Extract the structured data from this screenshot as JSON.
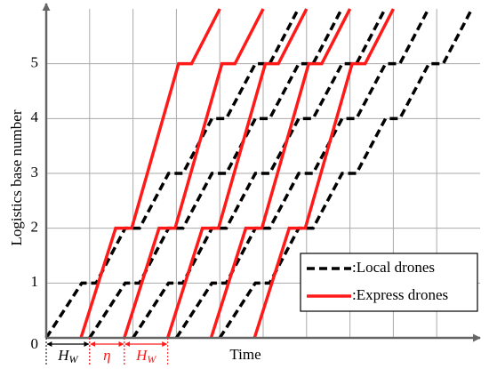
{
  "chart_data": {
    "type": "line",
    "x_label": "Time",
    "y_label": "Logistics base number",
    "xlim": [
      0,
      10
    ],
    "ylim": [
      0,
      6
    ],
    "xticks": [
      1,
      2,
      3,
      4,
      5,
      6,
      7,
      8,
      9
    ],
    "yticks": [
      0,
      1,
      2,
      3,
      4,
      5
    ],
    "grid": true,
    "legend": "lower right",
    "series": [
      {
        "name": ":Local drones",
        "color": "#000000",
        "dashed": true,
        "lines": [
          {
            "x": [
              0,
              0.82,
              1.15,
              1.82,
              2.15,
              2.82,
              3.15,
              3.82,
              4.15,
              4.82,
              5.15,
              5.81
            ],
            "values": [
              0,
              1,
              1,
              2,
              2,
              3,
              3,
              4,
              4,
              5,
              5,
              6
            ]
          },
          {
            "x": [
              1,
              1.82,
              2.15,
              2.82,
              3.15,
              3.82,
              4.15,
              4.82,
              5.15,
              5.82,
              6.15,
              6.81
            ],
            "values": [
              0,
              1,
              1,
              2,
              2,
              3,
              3,
              4,
              4,
              5,
              5,
              6
            ]
          },
          {
            "x": [
              2,
              2.82,
              3.15,
              3.82,
              4.15,
              4.82,
              5.15,
              5.82,
              6.15,
              6.82,
              7.15,
              7.81
            ],
            "values": [
              0,
              1,
              1,
              2,
              2,
              3,
              3,
              4,
              4,
              5,
              5,
              6
            ]
          },
          {
            "x": [
              3,
              3.82,
              4.15,
              4.82,
              5.15,
              5.82,
              6.15,
              6.82,
              7.15,
              7.82,
              8.15,
              8.81
            ],
            "values": [
              0,
              1,
              1,
              2,
              2,
              3,
              3,
              4,
              4,
              5,
              5,
              6
            ]
          },
          {
            "x": [
              4,
              4.82,
              5.15,
              5.82,
              6.15,
              6.82,
              7.15,
              7.82,
              8.15,
              8.82,
              9.15,
              9.81
            ],
            "values": [
              0,
              1,
              1,
              2,
              2,
              3,
              3,
              4,
              4,
              5,
              5,
              6
            ]
          }
        ]
      },
      {
        "name": ":Express drones",
        "color": "#ff1a1a",
        "dashed": false,
        "lines": [
          {
            "x": [
              0.8,
              1.6,
              1.97,
              3.05,
              3.35,
              4.0
            ],
            "values": [
              0,
              2,
              2,
              5,
              5,
              6
            ]
          },
          {
            "x": [
              1.8,
              2.6,
              2.97,
              4.05,
              4.35,
              5.0
            ],
            "values": [
              0,
              2,
              2,
              5,
              5,
              6
            ]
          },
          {
            "x": [
              2.8,
              3.6,
              3.97,
              5.05,
              5.35,
              6.0
            ],
            "values": [
              0,
              2,
              2,
              5,
              5,
              6
            ]
          },
          {
            "x": [
              3.8,
              4.6,
              4.97,
              6.05,
              6.35,
              7.0
            ],
            "values": [
              0,
              2,
              2,
              5,
              5,
              6
            ]
          },
          {
            "x": [
              4.8,
              5.6,
              5.97,
              7.05,
              7.35,
              8.0
            ],
            "values": [
              0,
              2,
              2,
              5,
              5,
              6
            ]
          }
        ]
      }
    ],
    "annotations": [
      {
        "text": "H",
        "sub": "W",
        "from": 0,
        "to": 1,
        "color": "#000000"
      },
      {
        "text": "η",
        "from": 1,
        "to": 1.8,
        "color": "#ff1a1a"
      },
      {
        "text": "H",
        "sub": "W",
        "from": 1.8,
        "to": 2.8,
        "color": "#ff1a1a"
      }
    ]
  }
}
